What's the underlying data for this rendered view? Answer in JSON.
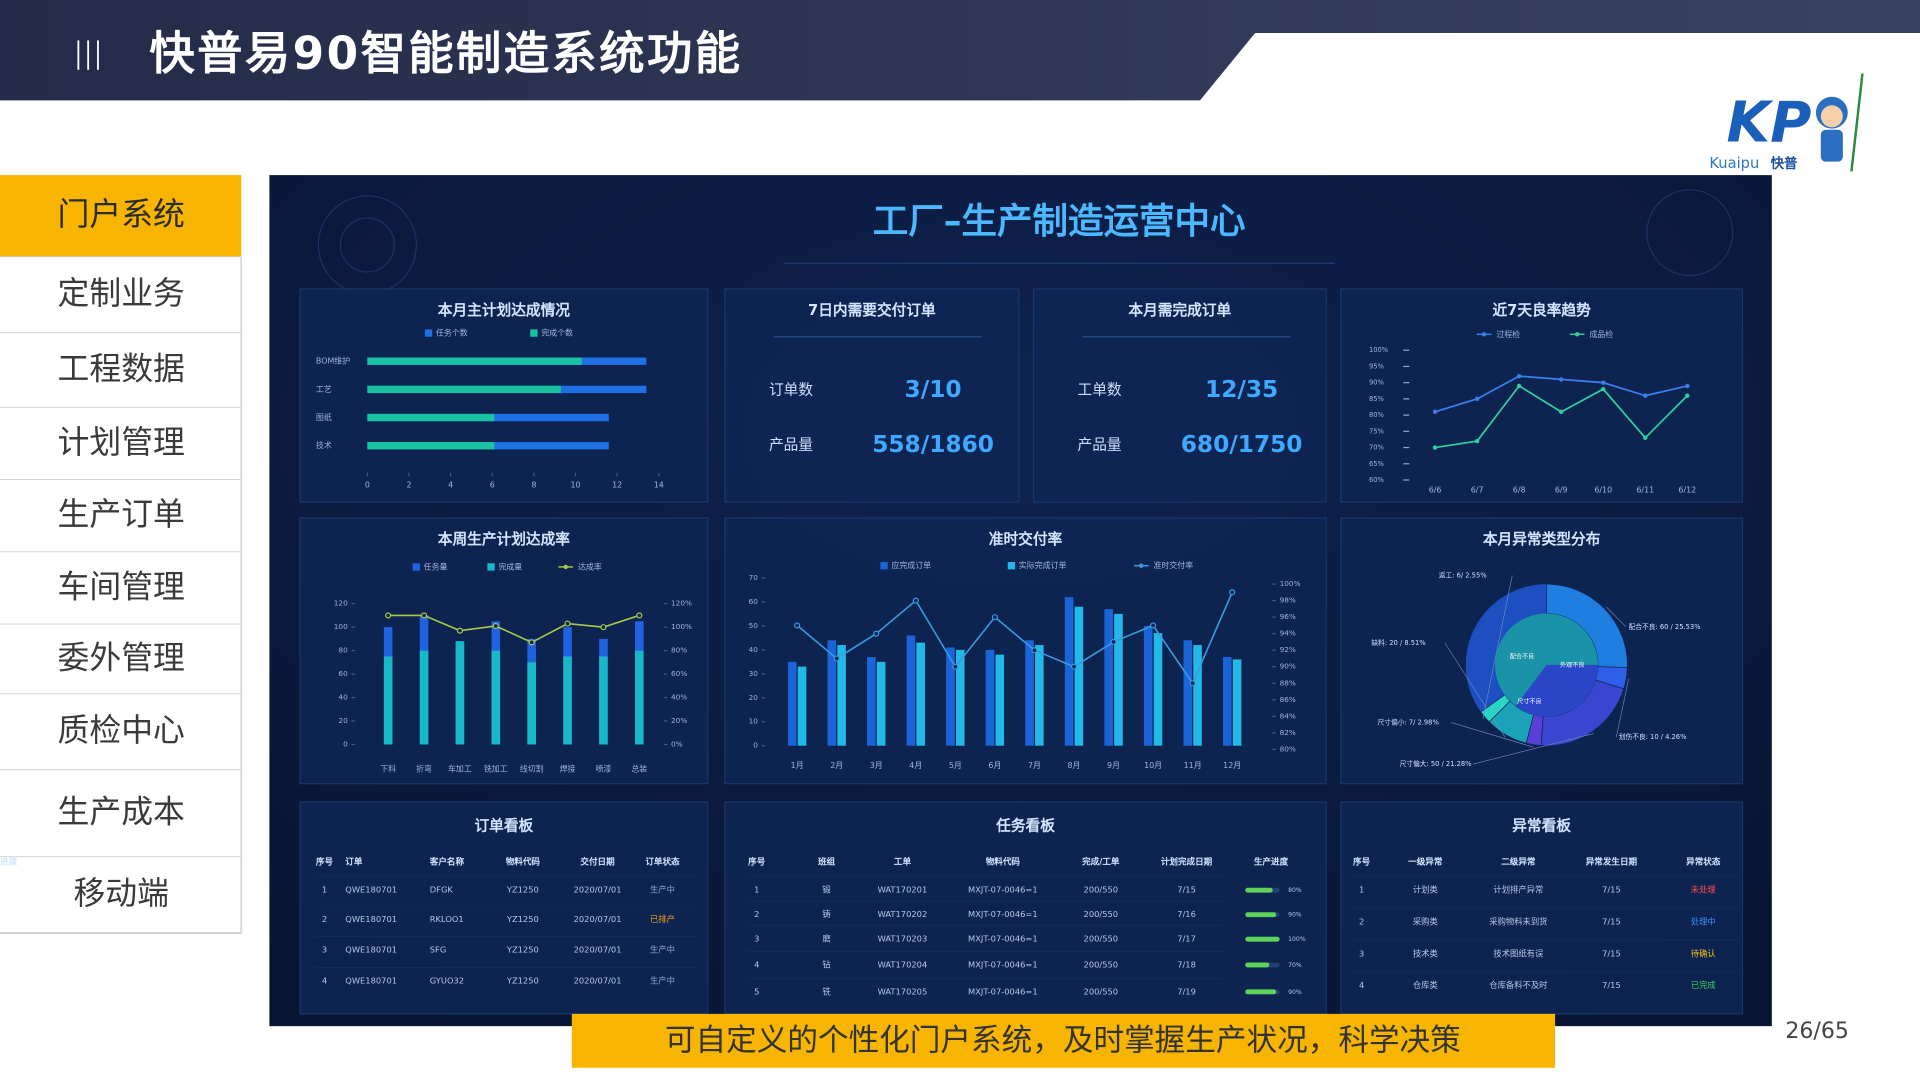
{
  "header": {
    "title": "快普易90智能制造系统功能"
  },
  "logo": {
    "mark": "KP",
    "brand": "Kuaipu",
    "brand_cn": "快普"
  },
  "sidebar": {
    "items": [
      "门户系统",
      "定制业务",
      "工程数据",
      "计划管理",
      "生产订单",
      "车间管理",
      "委外管理",
      "质检中心",
      "生产成本",
      "移动端"
    ],
    "active": 0
  },
  "dashboard": {
    "title": "工厂–生产制造运营中心",
    "plan_completion": {
      "type": "bar",
      "orientation": "horizontal",
      "title": "本月主计划达成情况",
      "categories": [
        "BOM维护",
        "工艺",
        "图纸",
        "技术"
      ],
      "series": [
        {
          "name": "任务个数",
          "color": "#1f6fe5",
          "values": [
            13.4,
            13.4,
            11.6,
            11.6
          ]
        },
        {
          "name": "完成个数",
          "color": "#19c2a0",
          "values": [
            10.3,
            9.3,
            6.1,
            6.1
          ]
        }
      ],
      "xlim": [
        0,
        14
      ],
      "xticks": [
        0,
        2,
        4,
        6,
        8,
        10,
        12,
        14
      ]
    },
    "orders_7d": {
      "title": "7日内需要交付订单",
      "rows": [
        {
          "label": "订单数",
          "value": "3/10"
        },
        {
          "label": "产品量",
          "value": "558/1860"
        }
      ]
    },
    "month_orders": {
      "title": "本月需完成订单",
      "rows": [
        {
          "label": "工单数",
          "value": "12/35"
        },
        {
          "label": "产品量",
          "value": "680/1750"
        }
      ]
    },
    "yield_trend": {
      "type": "line",
      "title": "近7天良率趋势",
      "categories": [
        "6/6",
        "6/7",
        "6/8",
        "6/9",
        "6/10",
        "6/11",
        "6/12"
      ],
      "series": [
        {
          "name": "过程检",
          "color": "#3a7ff0",
          "values": [
            81,
            85,
            92,
            91,
            90,
            86,
            89
          ]
        },
        {
          "name": "成品检",
          "color": "#2fd0a0",
          "values": [
            70,
            72,
            89,
            81,
            88,
            73,
            86
          ]
        }
      ],
      "ylim": [
        60,
        100
      ],
      "yticks": [
        {
          "value": 60,
          "label": "60%"
        },
        {
          "value": 65,
          "label": "65%"
        },
        {
          "value": 70,
          "label": "70%"
        },
        {
          "value": 75,
          "label": "75%"
        },
        {
          "value": 80,
          "label": "80%"
        },
        {
          "value": 85,
          "label": "85%"
        },
        {
          "value": 90,
          "label": "90%"
        },
        {
          "value": 95,
          "label": "95%"
        },
        {
          "value": 100,
          "label": "100%"
        }
      ]
    },
    "weekly_plan": {
      "type": "combo",
      "title": "本周生产计划达成率",
      "overlay": true,
      "categories": [
        "下料",
        "折弯",
        "车加工",
        "铣加工",
        "线切割",
        "焊接",
        "喷漆",
        "总装"
      ],
      "series": [
        {
          "name": "任务量",
          "color": "#1f63e0",
          "values": [
            100,
            110,
            88,
            105,
            90,
            100,
            90,
            105
          ]
        },
        {
          "name": "完成量",
          "color": "#19b8c8",
          "values": [
            75,
            80,
            88,
            80,
            70,
            75,
            75,
            80
          ]
        },
        {
          "name": "达成率",
          "color": "#a8c84a",
          "axis": "y2",
          "values": [
            110,
            110,
            97,
            101,
            87,
            103,
            100,
            110
          ]
        }
      ],
      "ylim": [
        0,
        120
      ],
      "yticks": [
        0,
        20,
        40,
        60,
        80,
        100,
        120
      ],
      "y2lim": [
        0,
        120
      ],
      "y2ticks": [
        {
          "value": 0,
          "label": "0%"
        },
        {
          "value": 20,
          "label": "20%"
        },
        {
          "value": 40,
          "label": "40%"
        },
        {
          "value": 60,
          "label": "60%"
        },
        {
          "value": 80,
          "label": "80%"
        },
        {
          "value": 100,
          "label": "100%"
        },
        {
          "value": 120,
          "label": "120%"
        }
      ]
    },
    "on_time": {
      "type": "combo",
      "title": "准时交付率",
      "overlay": false,
      "categories": [
        "1月",
        "2月",
        "3月",
        "4月",
        "5月",
        "6月",
        "7月",
        "8月",
        "9月",
        "10月",
        "11月",
        "12月"
      ],
      "series": [
        {
          "name": "应完成订单",
          "color": "#1b64d8",
          "values": [
            35,
            44,
            37,
            46,
            41,
            40,
            44,
            62,
            57,
            50,
            44,
            37
          ]
        },
        {
          "name": "实际完成订单",
          "color": "#22b8e8",
          "values": [
            33,
            42,
            35,
            43,
            40,
            38,
            42,
            58,
            55,
            47,
            42,
            36
          ]
        },
        {
          "name": "准时交付率",
          "color": "#3a9be0",
          "axis": "y2",
          "values": [
            95,
            91,
            94,
            98,
            90,
            96,
            92,
            90,
            93,
            95,
            88,
            99
          ]
        }
      ],
      "ylim": [
        0,
        70
      ],
      "yticks": [
        0,
        10,
        20,
        30,
        40,
        50,
        60,
        70
      ],
      "y2lim": [
        80,
        100
      ],
      "y2ticks": [
        {
          "value": 80,
          "label": "80%"
        },
        {
          "value": 82,
          "label": "82%"
        },
        {
          "value": 84,
          "label": "84%"
        },
        {
          "value": 86,
          "label": "86%"
        },
        {
          "value": 88,
          "label": "88%"
        },
        {
          "value": 90,
          "label": "90%"
        },
        {
          "value": 92,
          "label": "92%"
        },
        {
          "value": 94,
          "label": "94%"
        },
        {
          "value": 96,
          "label": "96%"
        },
        {
          "value": 98,
          "label": "98%"
        },
        {
          "value": 100,
          "label": "100%"
        }
      ]
    },
    "anomaly_types": {
      "type": "pie",
      "title": "本月异常类型分布",
      "items": [
        {
          "label": "配合不良: 60 / 25.53%",
          "value": 25.53,
          "color": "#1e7fe0"
        },
        {
          "label": "划伤不良: 10 / 4.26%",
          "value": 4.26,
          "color": "#2f5fe8"
        },
        {
          "label": "尺寸偏大: 50 / 21.28%",
          "value": 21.28,
          "color": "#3b46d0"
        },
        {
          "label": "尺寸偏小: 7/ 2.98%",
          "value": 2.98,
          "color": "#5a3fd6"
        },
        {
          "label": "缺料: 20 / 8.51%",
          "value": 8.51,
          "color": "#1aa3b8"
        },
        {
          "label": "返工: 6/ 2.55%",
          "value": 2.55,
          "color": "#2bd4c4"
        }
      ],
      "inner_labels": [
        "配合不良",
        "外观不良",
        "尺寸不良"
      ]
    },
    "order_board": {
      "title": "订单看板",
      "columns": [
        "序号",
        "订单",
        "客户名称",
        "物料代码",
        "交付日期",
        "订单状态"
      ],
      "rows": [
        [
          "1",
          "QWE180701",
          "DFGK",
          "YZ1250",
          "2020/07/01",
          "生产中"
        ],
        [
          "2",
          "QWE180701",
          "RKLOO1",
          "YZ1250",
          "2020/07/01",
          "已排产"
        ],
        [
          "3",
          "QWE180701",
          "SFG",
          "YZ1250",
          "2020/07/01",
          "生产中"
        ],
        [
          "4",
          "QWE180701",
          "GYUO32",
          "YZ1250",
          "2020/07/01",
          "生产中"
        ]
      ],
      "status_colors": [
        "#8fa6d0",
        "#f0a020",
        "#8fa6d0",
        "#8fa6d0"
      ]
    },
    "task_board": {
      "title": "任务看板",
      "columns": [
        "序号",
        "班组",
        "工单",
        "物料代码",
        "完成/工单",
        "计划完成日期",
        "生产进度"
      ],
      "rows": [
        [
          "1",
          "锻",
          "WAT170201",
          "MXJT-07-0046=1",
          "200/550",
          "7/15"
        ],
        [
          "2",
          "铸",
          "WAT170202",
          "MXJT-07-0046=1",
          "200/550",
          "7/16"
        ],
        [
          "3",
          "磨",
          "WAT170203",
          "MXJT-07-0046=1",
          "200/550",
          "7/17"
        ],
        [
          "4",
          "钻",
          "WAT170204",
          "MXJT-07-0046=1",
          "200/550",
          "7/18"
        ],
        [
          "5",
          "铣",
          "WAT170205",
          "MXJT-07-0046=1",
          "200/550",
          "7/19"
        ]
      ],
      "progress": [
        80,
        90,
        100,
        70,
        90
      ],
      "progress_labels": [
        "80%",
        "90%",
        "100%",
        "70%",
        "90%"
      ],
      "progress_color": "#5fd35a"
    },
    "exception_board": {
      "title": "异常看板",
      "columns": [
        "序号",
        "一级异常",
        "二级异常",
        "异常发生日期",
        "异常状态"
      ],
      "rows": [
        [
          "1",
          "计划类",
          "计划排产异常",
          "7/15",
          "未处理"
        ],
        [
          "2",
          "采购类",
          "采购物料未到货",
          "7/15",
          "处理中"
        ],
        [
          "3",
          "技术类",
          "技术图纸有误",
          "7/15",
          "待确认"
        ],
        [
          "4",
          "仓库类",
          "仓库备料不及时",
          "7/15",
          "已完成"
        ]
      ],
      "status_colors": [
        "#ff4d4d",
        "#3a8cff",
        "#f0c020",
        "#3cd060"
      ]
    }
  },
  "caption": "可自定义的个性化门户系统，及时掌握生产状况，科学决策",
  "page_number": "26/65"
}
